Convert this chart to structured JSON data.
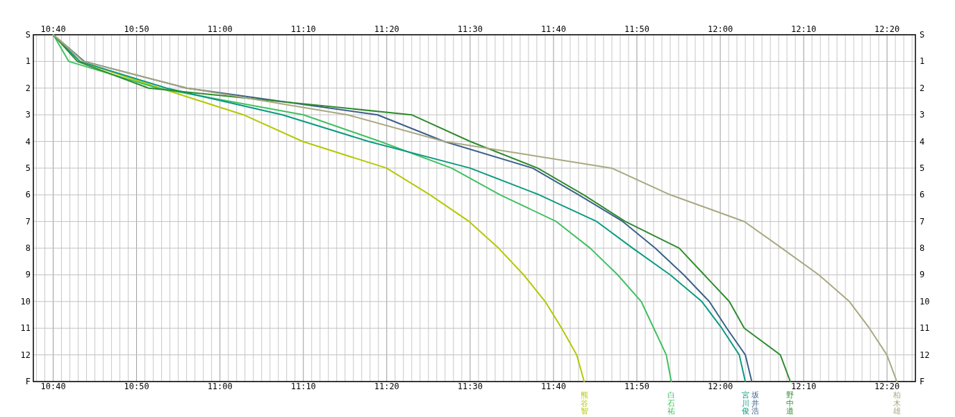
{
  "chart_data": {
    "type": "line",
    "grid": true,
    "orientation": "horizontal",
    "categories": [
      "S",
      "1",
      "2",
      "3",
      "4",
      "5",
      "6",
      "7",
      "8",
      "9",
      "10",
      "11",
      "12",
      "F"
    ],
    "xlim": [
      10.627,
      12.39
    ],
    "x2lim": [
      10.627,
      12.39
    ],
    "xticks": [
      {
        "value": 10.6333,
        "label": null
      },
      {
        "value": 10.65,
        "label": null
      },
      {
        "value": 10.6667,
        "label": "10:40"
      },
      {
        "value": 10.6833,
        "label": null
      },
      {
        "value": 10.7,
        "label": null
      },
      {
        "value": 10.7167,
        "label": null
      },
      {
        "value": 10.7333,
        "label": null
      },
      {
        "value": 10.75,
        "label": null
      },
      {
        "value": 10.7667,
        "label": null
      },
      {
        "value": 10.7833,
        "label": null
      },
      {
        "value": 10.8,
        "label": null
      },
      {
        "value": 10.8167,
        "label": null
      },
      {
        "value": 10.8333,
        "label": "10:50"
      },
      {
        "value": 10.85,
        "label": null
      },
      {
        "value": 10.8667,
        "label": null
      },
      {
        "value": 10.8833,
        "label": null
      },
      {
        "value": 10.9,
        "label": null
      },
      {
        "value": 10.9167,
        "label": null
      },
      {
        "value": 10.9333,
        "label": null
      },
      {
        "value": 10.95,
        "label": null
      },
      {
        "value": 10.9667,
        "label": null
      },
      {
        "value": 10.9833,
        "label": null
      },
      {
        "value": 11,
        "label": "11:00"
      },
      {
        "value": 11.0167,
        "label": null
      },
      {
        "value": 11.0333,
        "label": null
      },
      {
        "value": 11.05,
        "label": null
      },
      {
        "value": 11.0667,
        "label": null
      },
      {
        "value": 11.0833,
        "label": null
      },
      {
        "value": 11.1,
        "label": null
      },
      {
        "value": 11.1167,
        "label": null
      },
      {
        "value": 11.1333,
        "label": null
      },
      {
        "value": 11.15,
        "label": null
      },
      {
        "value": 11.1667,
        "label": "11:10"
      },
      {
        "value": 11.1833,
        "label": null
      },
      {
        "value": 11.2,
        "label": null
      },
      {
        "value": 11.2167,
        "label": null
      },
      {
        "value": 11.2333,
        "label": null
      },
      {
        "value": 11.25,
        "label": null
      },
      {
        "value": 11.2667,
        "label": null
      },
      {
        "value": 11.2833,
        "label": null
      },
      {
        "value": 11.3,
        "label": null
      },
      {
        "value": 11.3167,
        "label": null
      },
      {
        "value": 11.3333,
        "label": "11:20"
      },
      {
        "value": 11.35,
        "label": null
      },
      {
        "value": 11.3667,
        "label": null
      },
      {
        "value": 11.3833,
        "label": null
      },
      {
        "value": 11.4,
        "label": null
      },
      {
        "value": 11.4167,
        "label": null
      },
      {
        "value": 11.4333,
        "label": null
      },
      {
        "value": 11.45,
        "label": null
      },
      {
        "value": 11.4667,
        "label": null
      },
      {
        "value": 11.4833,
        "label": null
      },
      {
        "value": 11.5,
        "label": "11:30"
      },
      {
        "value": 11.5167,
        "label": null
      },
      {
        "value": 11.5333,
        "label": null
      },
      {
        "value": 11.55,
        "label": null
      },
      {
        "value": 11.5667,
        "label": null
      },
      {
        "value": 11.5833,
        "label": null
      },
      {
        "value": 11.6,
        "label": null
      },
      {
        "value": 11.6167,
        "label": null
      },
      {
        "value": 11.6333,
        "label": null
      },
      {
        "value": 11.65,
        "label": null
      },
      {
        "value": 11.6667,
        "label": "11:40"
      },
      {
        "value": 11.6833,
        "label": null
      },
      {
        "value": 11.7,
        "label": null
      },
      {
        "value": 11.7167,
        "label": null
      },
      {
        "value": 11.7333,
        "label": null
      },
      {
        "value": 11.75,
        "label": null
      },
      {
        "value": 11.7667,
        "label": null
      },
      {
        "value": 11.7833,
        "label": null
      },
      {
        "value": 11.8,
        "label": null
      },
      {
        "value": 11.8167,
        "label": null
      },
      {
        "value": 11.8333,
        "label": "11:50"
      },
      {
        "value": 11.85,
        "label": null
      },
      {
        "value": 11.8667,
        "label": null
      },
      {
        "value": 11.8833,
        "label": null
      },
      {
        "value": 11.9,
        "label": null
      },
      {
        "value": 11.9167,
        "label": null
      },
      {
        "value": 11.9333,
        "label": null
      },
      {
        "value": 11.95,
        "label": null
      },
      {
        "value": 11.9667,
        "label": null
      },
      {
        "value": 11.9833,
        "label": null
      },
      {
        "value": 12,
        "label": "12:00"
      },
      {
        "value": 12.0167,
        "label": null
      },
      {
        "value": 12.0333,
        "label": null
      },
      {
        "value": 12.05,
        "label": null
      },
      {
        "value": 12.0667,
        "label": null
      },
      {
        "value": 12.0833,
        "label": null
      },
      {
        "value": 12.1,
        "label": null
      },
      {
        "value": 12.1167,
        "label": null
      },
      {
        "value": 12.1333,
        "label": null
      },
      {
        "value": 12.15,
        "label": null
      },
      {
        "value": 12.1667,
        "label": "12:10"
      },
      {
        "value": 12.1833,
        "label": null
      },
      {
        "value": 12.2,
        "label": null
      },
      {
        "value": 12.2167,
        "label": null
      },
      {
        "value": 12.2333,
        "label": null
      },
      {
        "value": 12.25,
        "label": null
      },
      {
        "value": 12.2667,
        "label": null
      },
      {
        "value": 12.2833,
        "label": null
      },
      {
        "value": 12.3,
        "label": null
      },
      {
        "value": 12.3167,
        "label": null
      },
      {
        "value": 12.3333,
        "label": "12:20"
      },
      {
        "value": 12.35,
        "label": null
      },
      {
        "value": 12.3667,
        "label": null
      },
      {
        "value": 12.3833,
        "label": null
      }
    ],
    "x2ticks": [
      {
        "value": 10.6667,
        "label": "10:40"
      },
      {
        "value": 10.8333,
        "label": "10:50"
      },
      {
        "value": 11,
        "label": "11:00"
      },
      {
        "value": 11.1667,
        "label": "11:10"
      },
      {
        "value": 11.3333,
        "label": "11:20"
      },
      {
        "value": 11.5,
        "label": "11:30"
      },
      {
        "value": 11.6667,
        "label": "11:40"
      },
      {
        "value": 11.8333,
        "label": "11:50"
      },
      {
        "value": 12,
        "label": "12:00"
      },
      {
        "value": 12.1667,
        "label": "12:10"
      },
      {
        "value": 12.3333,
        "label": "12:20"
      }
    ],
    "series": [
      {
        "name": "熊谷智",
        "color": "#b4c800",
        "values": [
          10.667,
          10.72,
          10.88,
          11.047,
          11.165,
          11.333,
          11.42,
          11.498,
          11.557,
          11.607,
          11.65,
          11.683,
          11.713,
          11.728
        ]
      },
      {
        "name": "白石祐",
        "color": "#40c060",
        "values": [
          10.667,
          10.698,
          10.875,
          11.167,
          11.32,
          11.463,
          11.56,
          11.672,
          11.74,
          11.795,
          11.842,
          11.867,
          11.892,
          11.902
        ]
      },
      {
        "name": "宮川俊",
        "color": "#0a9a80",
        "values": [
          10.667,
          10.72,
          10.893,
          11.125,
          11.297,
          11.5,
          11.638,
          11.753,
          11.825,
          11.9,
          11.963,
          12.003,
          12.038,
          12.05
        ]
      },
      {
        "name": "坂井浩",
        "color": "#3a5f8a",
        "values": [
          10.667,
          10.729,
          10.933,
          11.315,
          11.448,
          11.625,
          11.717,
          11.805,
          11.87,
          11.927,
          11.978,
          12.013,
          12.05,
          12.063
        ]
      },
      {
        "name": "野中道",
        "color": "#2e8b2e",
        "values": [
          10.667,
          10.715,
          10.857,
          11.383,
          11.5,
          11.635,
          11.727,
          11.81,
          11.918,
          11.968,
          12.018,
          12.048,
          12.12,
          12.14
        ]
      },
      {
        "name": "柏木雄",
        "color": "#a8a880",
        "values": [
          10.667,
          10.727,
          10.935,
          11.255,
          11.448,
          11.783,
          11.9,
          12.048,
          12.123,
          12.197,
          12.258,
          12.298,
          12.333,
          12.353
        ]
      }
    ]
  }
}
